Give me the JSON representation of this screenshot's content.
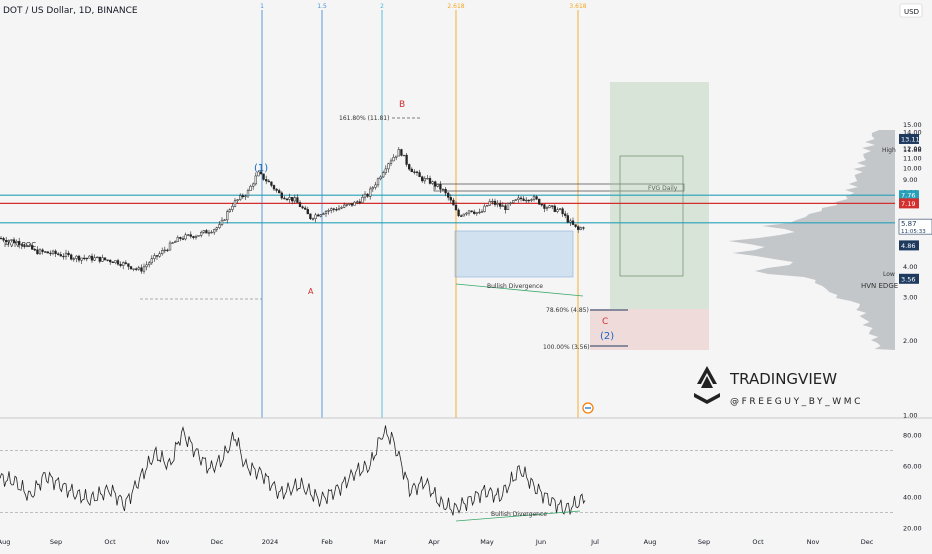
{
  "header": {
    "symbol_line": "DOT / US Dollar, 1D, BINANCE",
    "currency": "USD"
  },
  "price_axis": {
    "ticks": [
      {
        "label": "15.00",
        "v": 15
      },
      {
        "label": "14.00",
        "v": 14
      },
      {
        "label": "12.00",
        "v": 12
      },
      {
        "label": "11.00",
        "v": 11
      },
      {
        "label": "10.00",
        "v": 10
      },
      {
        "label": "9.00",
        "v": 9
      },
      {
        "label": "8.00",
        "v": 8
      },
      {
        "label": "6.00",
        "v": 6
      },
      {
        "label": "4.00",
        "v": 4
      },
      {
        "label": "3.00",
        "v": 3
      },
      {
        "label": "2.00",
        "v": 2
      },
      {
        "label": "1.00",
        "v": 1
      }
    ],
    "badges": [
      {
        "label": "13.11",
        "v": 13.11,
        "color": "#1e3a5f"
      },
      {
        "label": "7.76",
        "v": 7.76,
        "color": "#26a0b8"
      },
      {
        "label": "7.19",
        "v": 7.19,
        "color": "#d32f2f"
      },
      {
        "label": "4.86",
        "v": 4.86,
        "color": "#1e3a5f"
      },
      {
        "label": "3.56",
        "v": 3.56,
        "color": "#1e3a5f"
      }
    ],
    "current": {
      "label": "5.87",
      "v": 5.87,
      "countdown": "11:05:33",
      "color": "#1e3a5f"
    },
    "high": {
      "label": "High",
      "value": "11.88",
      "v": 11.88
    },
    "low": {
      "label": "Low",
      "value": "3.56",
      "v": 3.56
    }
  },
  "time_axis": {
    "labels": [
      "Aug",
      "Sep",
      "Oct",
      "Nov",
      "Dec",
      "2024",
      "Feb",
      "Mar",
      "Apr",
      "May",
      "Jun",
      "Jul",
      "Aug",
      "Sep",
      "Oct",
      "Nov",
      "Dec"
    ]
  },
  "fib_time": [
    {
      "label": "1",
      "color": "#4a90d9"
    },
    {
      "label": "1.5",
      "color": "#4a90d9"
    },
    {
      "label": "2",
      "color": "#4ab8d9"
    },
    {
      "label": "2.618",
      "color": "#f5a623"
    },
    {
      "label": "3.618",
      "color": "#f5a623"
    }
  ],
  "levels": {
    "hvn_poc": {
      "label": "HVN POC",
      "v": 7.19,
      "color": "#d32f2f"
    },
    "hvn_edge_top": {
      "v": 7.76,
      "color": "#26a0b8"
    },
    "hvn_edge": {
      "label": "HVN EDGE",
      "v": 6.0,
      "color": "#26a0b8"
    }
  },
  "annotations": {
    "fvg": "FVG Daily",
    "fib_1618": "161.80% (11.81)",
    "fib_786": "78.60% (4.85)",
    "fib_100": "100.00% (3.56)",
    "wave_1": "(1)",
    "wave_2": "(2)",
    "wave_a": "A",
    "wave_b": "B",
    "wave_c": "C",
    "bull_div_price": "Bullish Divergence",
    "bull_div_rsi": "Bullish Divergence",
    "colors": {
      "wave_impulse": "#1565c0",
      "wave_corrective": "#d32f2f"
    }
  },
  "rsi": {
    "ticks": [
      {
        "label": "80.00",
        "v": 80
      },
      {
        "label": "60.00",
        "v": 60
      },
      {
        "label": "40.00",
        "v": 40
      },
      {
        "label": "20.00",
        "v": 20
      }
    ]
  },
  "watermark": {
    "brand": "TRADINGVIEW",
    "handle": "@FREEGUY_BY_WMC"
  }
}
